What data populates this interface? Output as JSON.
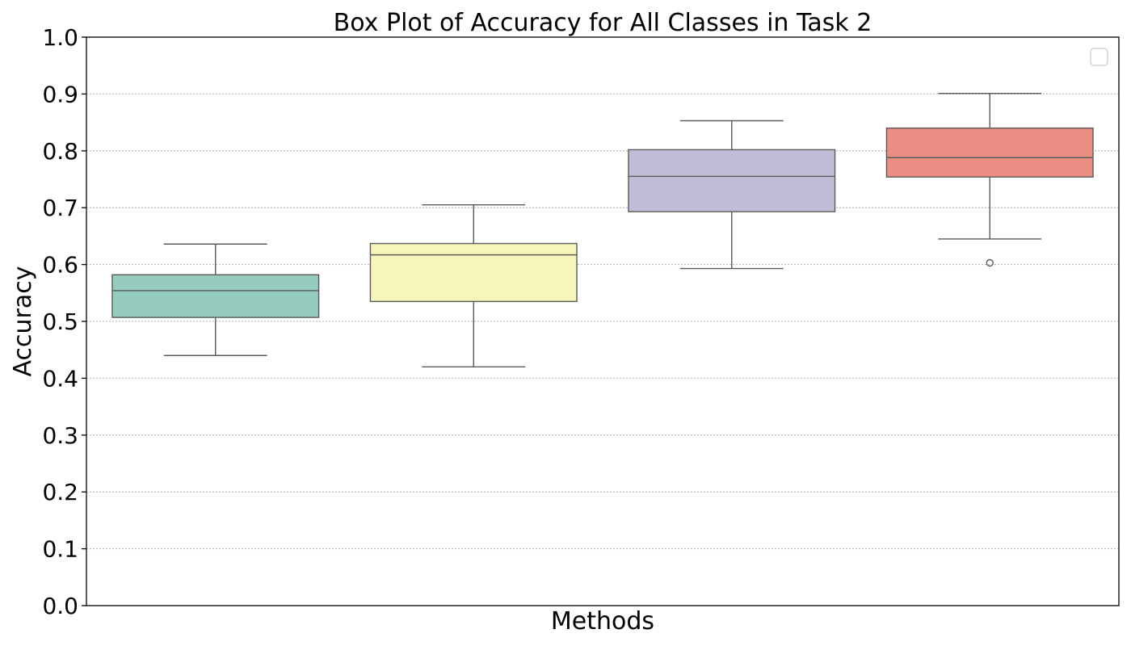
{
  "chart_data": {
    "type": "box",
    "title": "Box Plot of Accuracy for All Classes in Task 2",
    "xlabel": "Methods",
    "ylabel": "Accuracy",
    "ylim": [
      0,
      1
    ],
    "yticks": [
      "0.0",
      "0.1",
      "0.2",
      "0.3",
      "0.4",
      "0.5",
      "0.6",
      "0.7",
      "0.8",
      "0.9",
      "1.0"
    ],
    "grid": "y-dotted",
    "legend": "top-right, empty",
    "boxes": [
      {
        "color": "#96cbc0",
        "whisker_low": 0.44,
        "q1": 0.507,
        "median": 0.554,
        "q3": 0.582,
        "whisker_high": 0.636,
        "outliers": []
      },
      {
        "color": "#f6f5bb",
        "whisker_low": 0.42,
        "q1": 0.535,
        "median": 0.617,
        "q3": 0.637,
        "whisker_high": 0.705,
        "outliers": []
      },
      {
        "color": "#c1bdd7",
        "whisker_low": 0.593,
        "q1": 0.693,
        "median": 0.755,
        "q3": 0.802,
        "whisker_high": 0.853,
        "outliers": []
      },
      {
        "color": "#eb8e83",
        "whisker_low": 0.645,
        "q1": 0.754,
        "median": 0.788,
        "q3": 0.84,
        "whisker_high": 0.901,
        "outliers": [
          0.603
        ]
      }
    ]
  }
}
